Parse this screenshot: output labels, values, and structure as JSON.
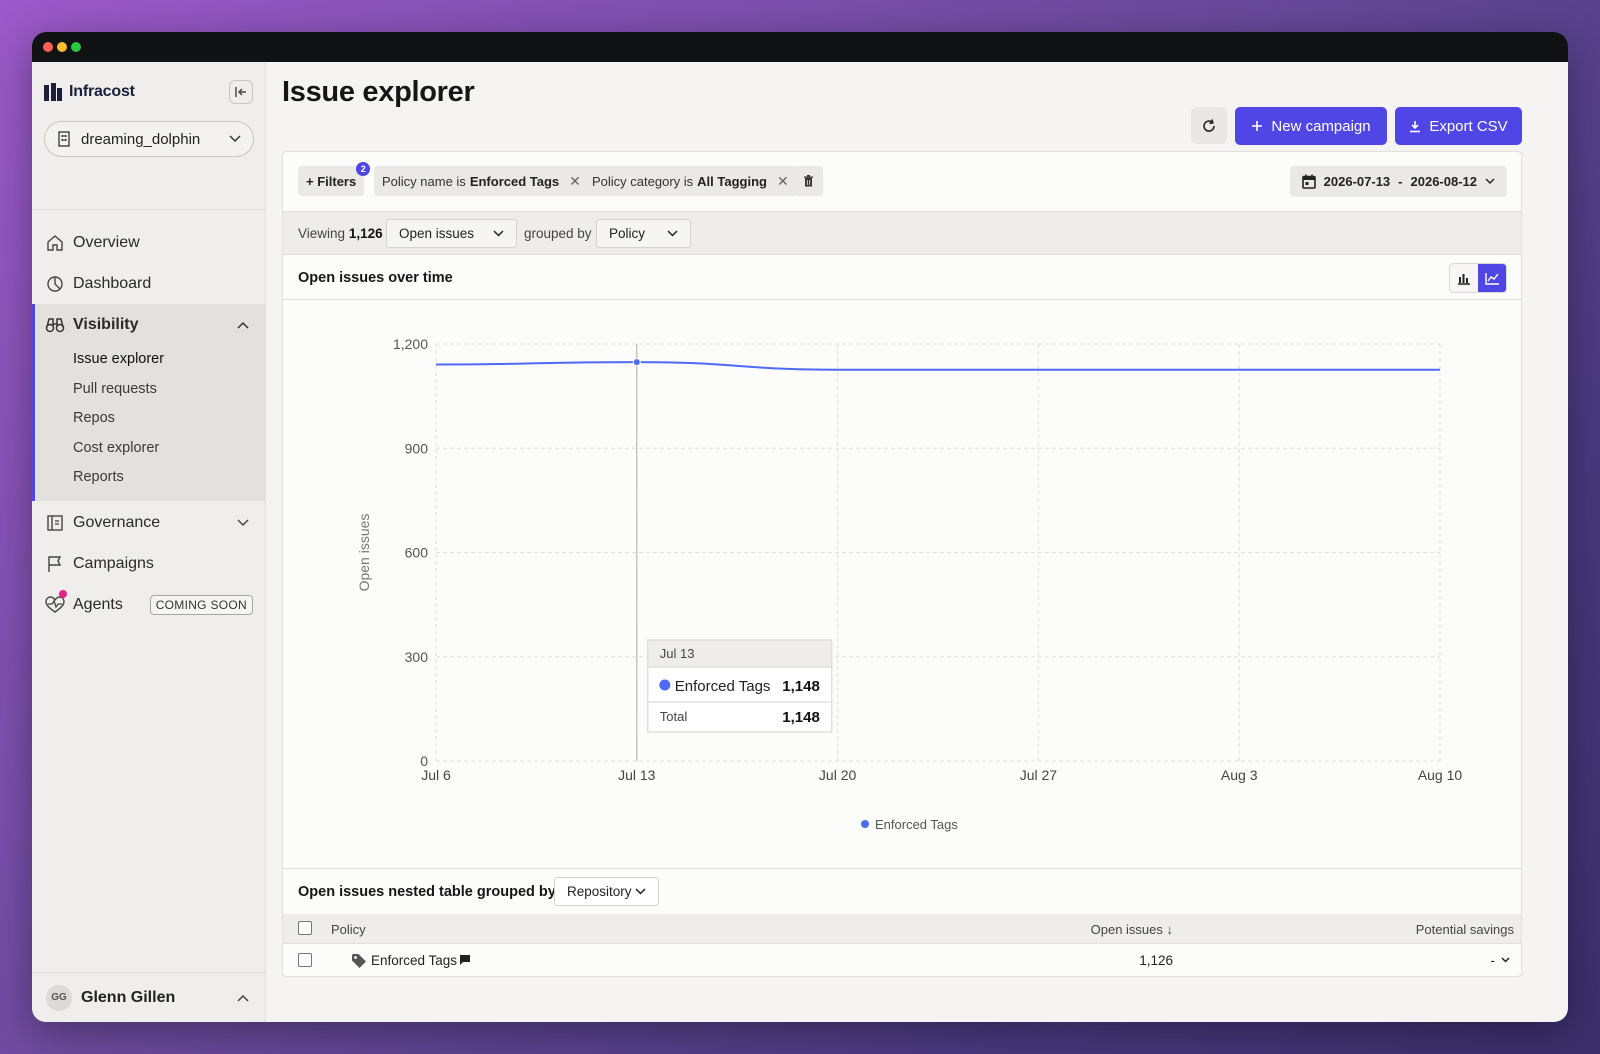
{
  "app": {
    "logo_text": "Infracost",
    "org": "dreaming_dolphin",
    "accent": "#4f46e5"
  },
  "nav": {
    "overview": "Overview",
    "dashboard": "Dashboard",
    "visibility": "Visibility",
    "visibility_items": [
      "Issue explorer",
      "Pull requests",
      "Repos",
      "Cost explorer",
      "Reports"
    ],
    "governance": "Governance",
    "campaigns": "Campaigns",
    "agents": "Agents",
    "agents_badge": "COMING SOON"
  },
  "user": {
    "initials": "GG",
    "name": "Glenn Gillen"
  },
  "header": {
    "title": "Issue explorer",
    "new_campaign": "New campaign",
    "export_csv": "Export CSV"
  },
  "filters": {
    "add_label": "+ Filters",
    "count": "2",
    "chips": [
      {
        "prefix": "Policy name is",
        "value": "Enforced Tags"
      },
      {
        "prefix": "Policy category is",
        "value": "All Tagging"
      }
    ],
    "date_from": "2026-07-13",
    "date_sep": "-",
    "date_to": "2026-08-12"
  },
  "viewing": {
    "label": "Viewing",
    "count": "1,126",
    "metric": "Open issues",
    "grouped_label": "grouped by",
    "group": "Policy"
  },
  "chart_title": "Open issues over time",
  "chart_data": {
    "type": "line",
    "x": [
      "Jul 6",
      "Jul 13",
      "Jul 20",
      "Jul 27",
      "Aug 3",
      "Aug 10"
    ],
    "series": [
      {
        "name": "Enforced Tags",
        "values": [
          1141,
          1148,
          1126,
          1126,
          1126,
          1126
        ],
        "color": "#4f6bf5"
      }
    ],
    "ylabel": "Open issues",
    "ylim": [
      0,
      1200
    ],
    "yticks": [
      "0",
      "300",
      "600",
      "900",
      "1,200"
    ],
    "grid": true,
    "legend": "bottom-center",
    "tooltip": {
      "date": "Jul 13",
      "series": "Enforced Tags",
      "value": "1,148",
      "total_label": "Total",
      "total": "1,148"
    }
  },
  "table": {
    "title": "Open issues nested table grouped by",
    "group": "Repository",
    "columns": {
      "policy": "Policy",
      "open_issues": "Open issues ↓",
      "savings": "Potential savings"
    },
    "rows": [
      {
        "policy": "Enforced Tags",
        "open_issues": "1,126",
        "savings": "-"
      }
    ]
  }
}
